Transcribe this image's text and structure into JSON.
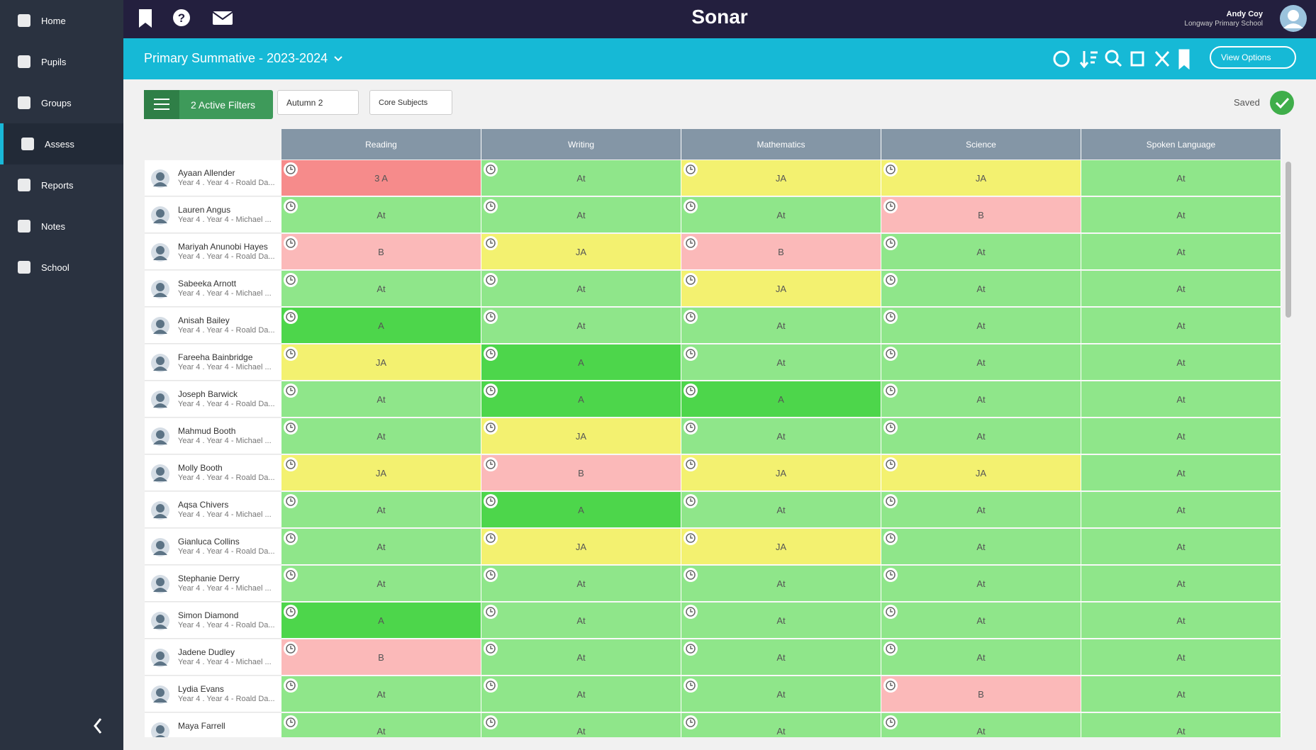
{
  "app": {
    "brand": "Sonar",
    "user_name": "Andy Coy",
    "user_school": "Longway Primary School"
  },
  "nav": [
    "Home",
    "Pupils",
    "Groups",
    "Assess",
    "Reports",
    "Notes",
    "School"
  ],
  "active_nav": 3,
  "toolbar": {
    "title": "Primary Summative - 2023-2024",
    "view_options": "View Options"
  },
  "filters": {
    "active": "2 Active Filters",
    "term": "Autumn 2",
    "subjects": "Core Subjects",
    "status": "Saved"
  },
  "table": {
    "columns": [
      "Reading",
      "Writing",
      "Mathematics",
      "Science",
      "Spoken Language"
    ],
    "grade_colors": {
      "At": "#8fe68a",
      "A": "#4dd64b",
      "JA": "#f3f170",
      "B": "#fbb9b9",
      "3 A": "#f68b8b"
    },
    "rows": [
      {
        "name": "Ayaan Allender",
        "class": "Year 4 . Year 4 - Roald Da...",
        "grades": [
          "3 A",
          "At",
          "JA",
          "JA",
          "At"
        ]
      },
      {
        "name": "Lauren Angus",
        "class": "Year 4 . Year 4 - Michael ...",
        "grades": [
          "At",
          "At",
          "At",
          "B",
          "At"
        ]
      },
      {
        "name": "Mariyah Anunobi Hayes",
        "class": "Year 4 . Year 4 - Roald Da...",
        "grades": [
          "B",
          "JA",
          "B",
          "At",
          "At"
        ]
      },
      {
        "name": "Sabeeka Arnott",
        "class": "Year 4 . Year 4 - Michael ...",
        "grades": [
          "At",
          "At",
          "JA",
          "At",
          "At"
        ]
      },
      {
        "name": "Anisah Bailey",
        "class": "Year 4 . Year 4 - Roald Da...",
        "grades": [
          "A",
          "At",
          "At",
          "At",
          "At"
        ]
      },
      {
        "name": "Fareeha Bainbridge",
        "class": "Year 4 . Year 4 - Michael ...",
        "grades": [
          "JA",
          "A",
          "At",
          "At",
          "At"
        ]
      },
      {
        "name": "Joseph Barwick",
        "class": "Year 4 . Year 4 - Roald Da...",
        "grades": [
          "At",
          "A",
          "A",
          "At",
          "At"
        ]
      },
      {
        "name": "Mahmud Booth",
        "class": "Year 4 . Year 4 - Michael ...",
        "grades": [
          "At",
          "JA",
          "At",
          "At",
          "At"
        ]
      },
      {
        "name": "Molly Booth",
        "class": "Year 4 . Year 4 - Roald Da...",
        "grades": [
          "JA",
          "B",
          "JA",
          "JA",
          "At"
        ]
      },
      {
        "name": "Aqsa Chivers",
        "class": "Year 4 . Year 4 - Michael ...",
        "grades": [
          "At",
          "A",
          "At",
          "At",
          "At"
        ]
      },
      {
        "name": "Gianluca Collins",
        "class": "Year 4 . Year 4 - Roald Da...",
        "grades": [
          "At",
          "JA",
          "JA",
          "At",
          "At"
        ]
      },
      {
        "name": "Stephanie Derry",
        "class": "Year 4 . Year 4 - Michael ...",
        "grades": [
          "At",
          "At",
          "At",
          "At",
          "At"
        ]
      },
      {
        "name": "Simon Diamond",
        "class": "Year 4 . Year 4 - Roald Da...",
        "grades": [
          "A",
          "At",
          "At",
          "At",
          "At"
        ]
      },
      {
        "name": "Jadene Dudley",
        "class": "Year 4 . Year 4 - Michael ...",
        "grades": [
          "B",
          "At",
          "At",
          "At",
          "At"
        ]
      },
      {
        "name": "Lydia Evans",
        "class": "Year 4 . Year 4 - Roald Da...",
        "grades": [
          "At",
          "At",
          "At",
          "B",
          "At"
        ]
      },
      {
        "name": "Maya Farrell",
        "grades": [
          "At",
          "At",
          "At",
          "At",
          "At"
        ]
      }
    ]
  }
}
